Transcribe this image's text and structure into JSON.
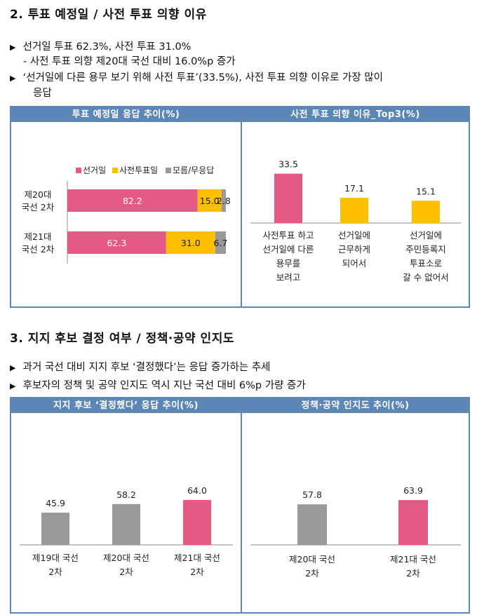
{
  "section2": {
    "title": "2.   투표 예정일 / 사전 투표 의향 이유",
    "bullets": [
      {
        "marker": "▶",
        "text": "선거일 투표 62.3%, 사전 투표 31.0%"
      },
      {
        "marker": "",
        "text": "- 사전 투표 의향 제20대 국선 대비 16.0%p 증가"
      },
      {
        "marker": "▶",
        "text": "‘선거일에 다른 용무 보기 위해 사전 투표’(33.5%), 사전 투표 의향 이유로 가장 많이"
      },
      {
        "marker": "",
        "text": "응답"
      }
    ]
  },
  "section3": {
    "title": "3.   지지 후보 결정 여부 / 정책·공약 인지도",
    "bullets": [
      {
        "marker": "▶",
        "text": "과거 국선 대비 지지 후보 ‘결정했다’는 응답 증가하는 추세"
      },
      {
        "marker": "▶",
        "text": "후보자의 정책 및 공약 인지도 역시 지난 국선 대비 6%p 가량 증가"
      }
    ]
  },
  "colors": {
    "pink": "#e55a82",
    "yellow": "#fcc000",
    "gray": "#999999",
    "header": "#5b86b6"
  },
  "chart_data": [
    {
      "type": "bar",
      "orientation": "horizontal-stacked",
      "title": "투표 예정일 응답 추이(%)",
      "categories": [
        [
          "제20대",
          "국선 2차"
        ],
        [
          "제21대",
          "국선 2차"
        ]
      ],
      "series": [
        {
          "name": "선거일",
          "color": "#e55a82",
          "values": [
            82.2,
            62.3
          ]
        },
        {
          "name": "사전투표일",
          "color": "#fcc000",
          "values": [
            15.0,
            31.0
          ]
        },
        {
          "name": "모름/무응답",
          "color": "#999999",
          "values": [
            2.8,
            6.7
          ]
        }
      ],
      "legend": "top"
    },
    {
      "type": "bar",
      "title": "사전 투표 의향 이유_Top3(%)",
      "categories": [
        [
          "사전투표 하고",
          "선거일에 다른",
          "용무를",
          "보려고"
        ],
        [
          "선거일에",
          "근무하게",
          "되어서"
        ],
        [
          "선거일에",
          "주민등록지",
          "투표소로",
          "갈 수 없어서"
        ]
      ],
      "values": [
        33.5,
        17.1,
        15.1
      ],
      "labels": [
        "33.5",
        "17.1",
        "15.1"
      ],
      "colors": [
        "#e55a82",
        "#fcc000",
        "#fcc000"
      ]
    },
    {
      "type": "bar",
      "title": "지지 후보 ‘결정했다’ 응답 추이(%)",
      "categories": [
        [
          "제19대 국선",
          "2차"
        ],
        [
          "제20대 국선",
          "2차"
        ],
        [
          "제21대 국선",
          "2차"
        ]
      ],
      "values": [
        45.9,
        58.2,
        64.0
      ],
      "labels": [
        "45.9",
        "58.2",
        "64.0"
      ],
      "colors": [
        "#999999",
        "#999999",
        "#e55a82"
      ]
    },
    {
      "type": "bar",
      "title": "정책·공약 인지도 추이(%)",
      "categories": [
        [
          "제20대 국선",
          "2차"
        ],
        [
          "제21대 국선",
          "2차"
        ]
      ],
      "values": [
        57.8,
        63.9
      ],
      "labels": [
        "57.8",
        "63.9"
      ],
      "colors": [
        "#999999",
        "#e55a82"
      ]
    }
  ]
}
